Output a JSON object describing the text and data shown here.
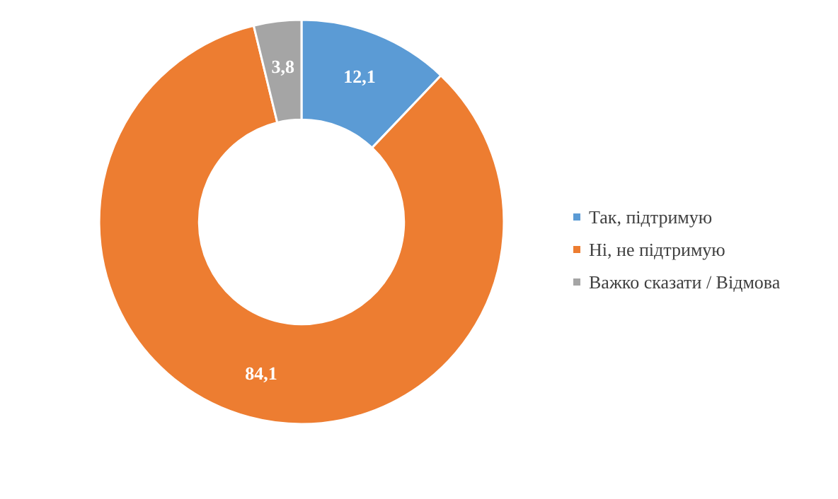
{
  "chart_data": {
    "type": "donut",
    "categories": [
      "Так, підтримую",
      "Ні, не підтримую",
      "Важко сказати / Відмова"
    ],
    "values": [
      12.1,
      84.1,
      3.8
    ],
    "colors": [
      "#5b9bd5",
      "#ed7d31",
      "#a5a5a5"
    ],
    "value_labels": [
      "12,1",
      "84,1",
      "3,8"
    ],
    "legend": "right"
  }
}
